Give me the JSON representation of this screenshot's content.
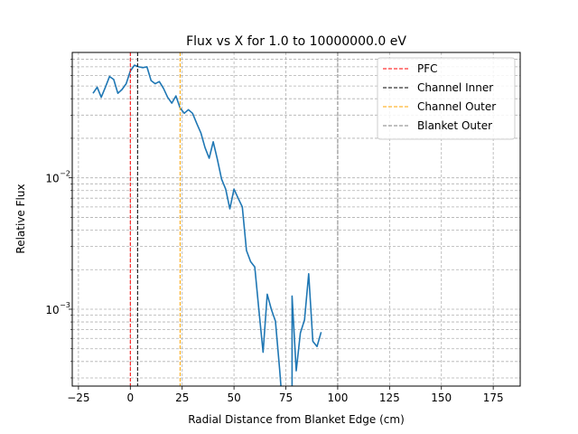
{
  "chart_data": {
    "type": "line",
    "title": "Flux vs X for 1.0 to 10000000.0 eV",
    "xlabel": "Radial Distance from Blanket Edge (cm)",
    "ylabel": "Relative Flux",
    "xlim": [
      -28,
      188
    ],
    "ylim": [
      0.00026,
      0.09
    ],
    "yscale": "log",
    "grid": true,
    "legend_position": "top-right",
    "x_ticks": [
      -25,
      0,
      25,
      50,
      75,
      100,
      125,
      150,
      175
    ],
    "x_tick_labels": [
      "−25",
      "0",
      "25",
      "50",
      "75",
      "100",
      "125",
      "150",
      "175"
    ],
    "y_major_ticks": [
      0.001,
      0.01
    ],
    "y_tick_labels": [
      "10",
      "10"
    ],
    "y_tick_exponents": [
      "−3",
      "−2"
    ],
    "y_minor_ticks": [
      0.0003,
      0.0004,
      0.0005,
      0.0006,
      0.0007,
      0.0008,
      0.0009,
      0.002,
      0.003,
      0.004,
      0.005,
      0.006,
      0.007,
      0.008,
      0.009,
      0.02,
      0.03,
      0.04,
      0.05,
      0.06,
      0.07,
      0.08
    ],
    "series": [
      {
        "color": "#1f77b4",
        "x": [
          -18,
          -16,
          -14,
          -12,
          -10,
          -8,
          -6,
          -4,
          -2,
          0,
          2,
          4,
          6,
          8,
          10,
          12,
          14,
          16,
          18,
          20,
          22,
          24,
          26,
          28,
          30,
          32,
          34,
          36,
          38,
          40,
          42,
          44,
          46,
          48,
          50,
          52,
          54,
          56,
          58,
          60,
          62,
          64,
          66,
          68,
          70,
          72,
          74,
          76,
          78,
          80,
          82,
          84,
          86,
          88,
          90,
          92
        ],
        "y": [
          0.044,
          0.049,
          0.041,
          0.049,
          0.059,
          0.056,
          0.044,
          0.047,
          0.052,
          0.065,
          0.072,
          0.07,
          0.069,
          0.07,
          0.055,
          0.052,
          0.054,
          0.048,
          0.041,
          0.037,
          0.042,
          0.034,
          0.031,
          0.033,
          0.031,
          0.026,
          0.022,
          0.017,
          0.0141,
          0.0188,
          0.0138,
          0.0098,
          0.0082,
          0.0058,
          0.0082,
          0.007,
          0.006,
          0.0028,
          0.0023,
          0.0021,
          0.00098,
          0.00047,
          0.0013,
          0.001,
          0.00081,
          0.00035,
          null,
          null,
          0.00126,
          0.00034,
          0.00066,
          0.00083,
          0.00186,
          0.00057,
          0.00052,
          0.00067
        ]
      }
    ],
    "vlines": [
      {
        "name": "PFC",
        "x": 0,
        "color": "#ff0000"
      },
      {
        "name": "Channel Inner",
        "x": 3.5,
        "color": "#000000"
      },
      {
        "name": "Channel Outer",
        "x": 24,
        "color": "#ffa500"
      },
      {
        "name": "Blanket Outer",
        "x": 100,
        "color": "#808080"
      }
    ]
  }
}
